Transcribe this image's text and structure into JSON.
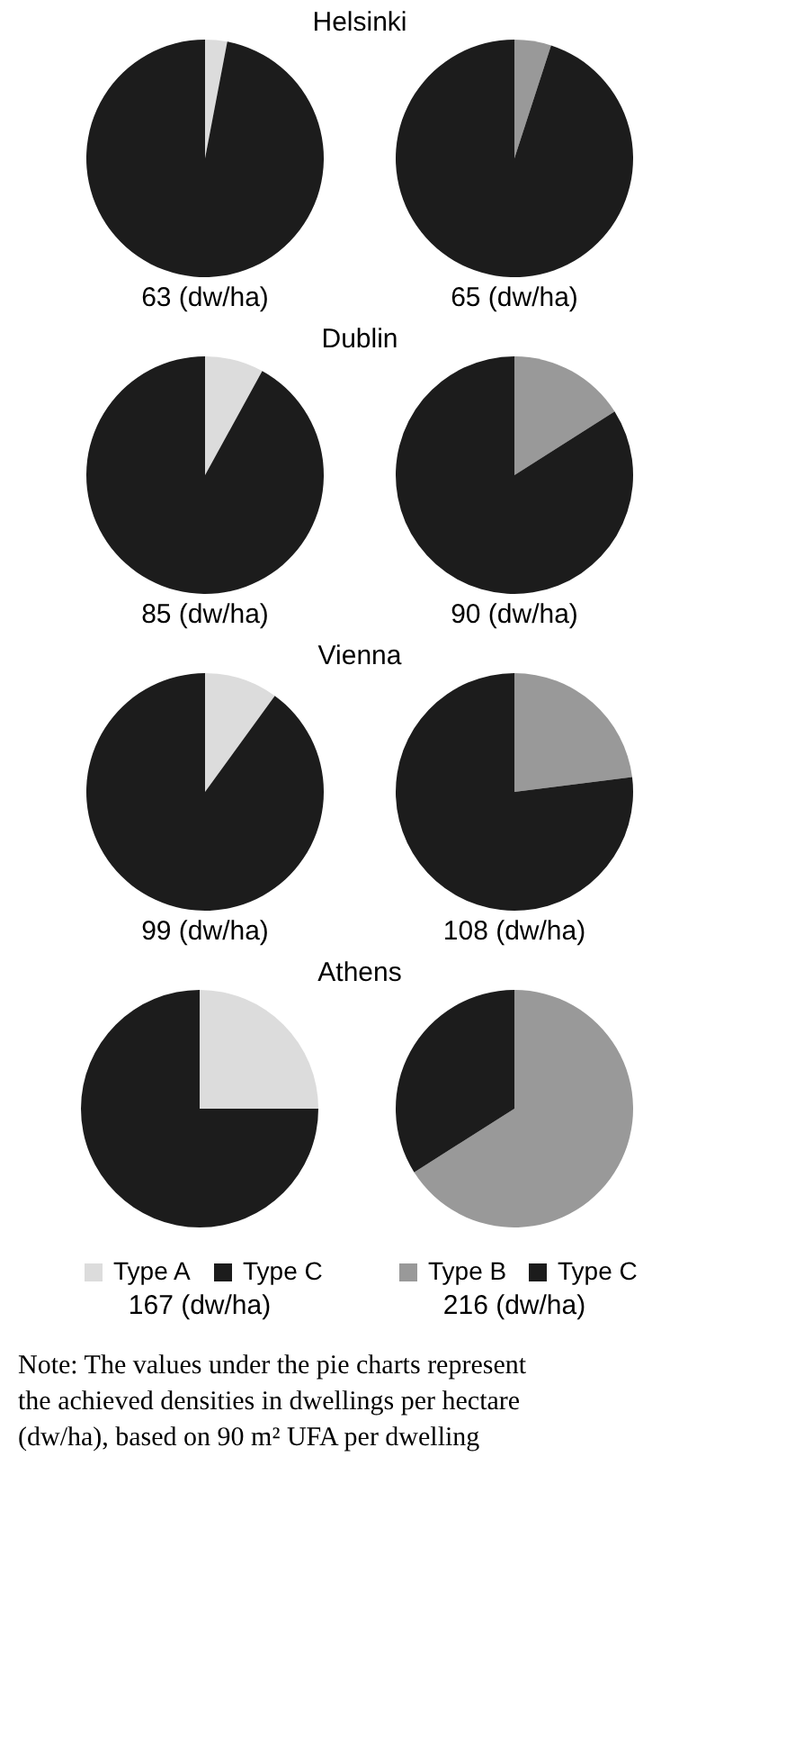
{
  "chart_data": [
    {
      "type": "pie",
      "title": "Helsinki",
      "xlabel": "63 (dw/ha)",
      "categories": [
        null,
        null
      ],
      "values": [
        3,
        97
      ],
      "colors": [
        "#dcdcdc",
        "#1c1c1c"
      ],
      "legend": false
    },
    {
      "type": "pie",
      "xlabel": "65 (dw/ha)",
      "categories": [
        null,
        null
      ],
      "values": [
        5,
        95
      ],
      "colors": [
        "#999999",
        "#1c1c1c"
      ],
      "legend": false
    },
    {
      "type": "pie",
      "title": "Dublin",
      "xlabel": "85 (dw/ha)",
      "categories": [
        null,
        null
      ],
      "values": [
        8,
        92
      ],
      "colors": [
        "#dcdcdc",
        "#1c1c1c"
      ],
      "legend": false
    },
    {
      "type": "pie",
      "xlabel": "90 (dw/ha)",
      "categories": [
        null,
        null
      ],
      "values": [
        16,
        84
      ],
      "colors": [
        "#999999",
        "#1c1c1c"
      ],
      "legend": false
    },
    {
      "type": "pie",
      "title": "Vienna",
      "xlabel": "99 (dw/ha)",
      "categories": [
        null,
        null
      ],
      "values": [
        10,
        90
      ],
      "colors": [
        "#dcdcdc",
        "#1c1c1c"
      ],
      "legend": false
    },
    {
      "type": "pie",
      "xlabel": "108 (dw/ha)",
      "categories": [
        null,
        null
      ],
      "values": [
        23,
        77
      ],
      "colors": [
        "#999999",
        "#1c1c1c"
      ],
      "legend": false
    },
    {
      "type": "pie",
      "title": "Athens",
      "xlabel": "167 (dw/ha)",
      "categories": [
        "Type A",
        "Type C"
      ],
      "values": [
        25,
        75
      ],
      "colors": [
        "#dcdcdc",
        "#1c1c1c"
      ],
      "legend": "bottom"
    },
    {
      "type": "pie",
      "xlabel": "216 (dw/ha)",
      "categories": [
        "Type B",
        "Type C"
      ],
      "values": [
        66,
        34
      ],
      "colors": [
        "#999999",
        "#1c1c1c"
      ],
      "legend": "bottom",
      "annotations": [
        "Note: The values under the pie charts represent the achieved densities in dwellings per hectare (dw/ha), based on 90 m² UFA per dwelling"
      ]
    }
  ]
}
